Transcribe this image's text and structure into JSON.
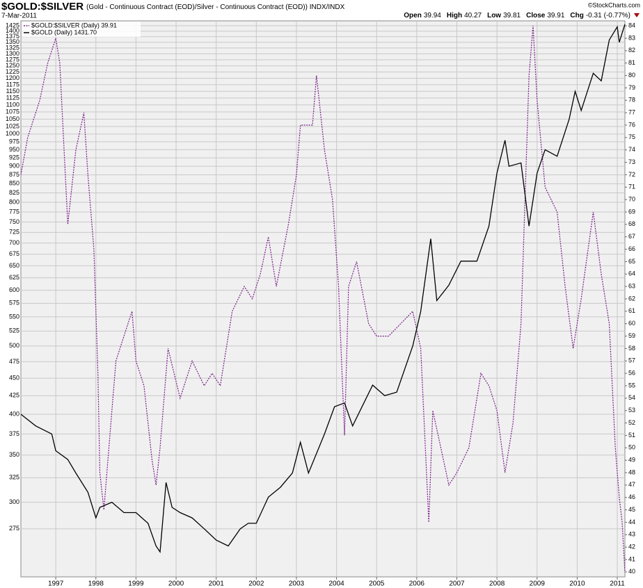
{
  "chart_data": {
    "type": "line",
    "title": "$GOLD:$SILVER",
    "subtitle": "(Gold - Continuous Contract (EOD)/Silver - Continuous Contract (EOD)) INDX/INDX",
    "date": "7-Mar-2011",
    "credit": "©StockCharts.com",
    "stats": [
      {
        "label": "Open",
        "value": 39.94
      },
      {
        "label": "High",
        "value": 40.27
      },
      {
        "label": "Low",
        "value": 39.81
      },
      {
        "label": "Close",
        "value": 39.91
      },
      {
        "label": "Chg",
        "value": -0.31,
        "percent": "(-0.77%)"
      }
    ],
    "xlim": [
      1996.13,
      2011.19
    ],
    "xticks": [
      1997,
      1998,
      1999,
      2000,
      2001,
      2002,
      2003,
      2004,
      2005,
      2006,
      2007,
      2008,
      2009,
      2010,
      2011
    ],
    "ylim": [
      235,
      1448
    ],
    "yscale": "log",
    "yticks": [
      275,
      300,
      325,
      350,
      375,
      400,
      425,
      450,
      475,
      500,
      525,
      550,
      575,
      600,
      625,
      650,
      675,
      700,
      725,
      750,
      775,
      800,
      825,
      850,
      875,
      900,
      925,
      950,
      975,
      1000,
      1025,
      1050,
      1075,
      1100,
      1125,
      1150,
      1175,
      1200,
      1225,
      1250,
      1275,
      1300,
      1325,
      1350,
      1375,
      1400,
      1425
    ],
    "y2lim": [
      39.6,
      84.4
    ],
    "y2ticks": [
      40,
      41,
      42,
      43,
      44,
      45,
      46,
      47,
      48,
      49,
      50,
      51,
      52,
      53,
      54,
      55,
      56,
      57,
      58,
      59,
      60,
      61,
      62,
      63,
      64,
      65,
      66,
      67,
      68,
      69,
      70,
      71,
      72,
      73,
      74,
      75,
      76,
      77,
      78,
      79,
      80,
      81,
      82,
      83,
      84
    ],
    "grid": true,
    "legend": "top-left",
    "series": [
      {
        "name": "$GOLD:$SILVER (Daily) 39.91",
        "color": "#7a1f8a",
        "dashed": true,
        "axis": "y2",
        "x": [
          1996.13,
          1996.3,
          1996.6,
          1996.8,
          1997.0,
          1997.1,
          1997.3,
          1997.5,
          1997.7,
          1997.8,
          1997.95,
          1998.05,
          1998.1,
          1998.2,
          1998.4,
          1998.5,
          1998.8,
          1998.9,
          1999.0,
          1999.2,
          1999.4,
          1999.5,
          1999.6,
          1999.8,
          2000.1,
          2000.4,
          2000.7,
          2000.9,
          2001.1,
          2001.4,
          2001.7,
          2001.9,
          2002.1,
          2002.3,
          2002.5,
          2002.8,
          2003.0,
          2003.1,
          2003.4,
          2003.5,
          2003.7,
          2003.9,
          2004.05,
          2004.2,
          2004.3,
          2004.5,
          2004.8,
          2005.0,
          2005.3,
          2005.6,
          2005.9,
          2006.1,
          2006.3,
          2006.4,
          2006.6,
          2006.8,
          2007.0,
          2007.3,
          2007.6,
          2007.8,
          2008.0,
          2008.2,
          2008.4,
          2008.6,
          2008.8,
          2008.9,
          2009.0,
          2009.2,
          2009.5,
          2009.7,
          2009.9,
          2010.1,
          2010.4,
          2010.6,
          2010.8,
          2010.95,
          2011.05,
          2011.12,
          2011.19
        ],
        "values": [
          72,
          75,
          78,
          81,
          83,
          81,
          68,
          74,
          77,
          72,
          66,
          56,
          48,
          45,
          53,
          57,
          60,
          61,
          57,
          55,
          49,
          47,
          50,
          58,
          54,
          57,
          55,
          56,
          55,
          61,
          63,
          62,
          64,
          67,
          63,
          68,
          72,
          76,
          76,
          80,
          74,
          70,
          63,
          51,
          63,
          65,
          60,
          59,
          59,
          60,
          61,
          58,
          44,
          53,
          50,
          47,
          48,
          50,
          56,
          55,
          53,
          48,
          52,
          60,
          80,
          84,
          78,
          71,
          69,
          63,
          58,
          62,
          69,
          64,
          60,
          50,
          46,
          44,
          40
        ]
      },
      {
        "name": "$GOLD (Daily) 1431.70",
        "color": "#000000",
        "dashed": false,
        "axis": "y",
        "x": [
          1996.13,
          1996.5,
          1996.9,
          1997.0,
          1997.3,
          1997.5,
          1997.8,
          1998.0,
          1998.1,
          1998.4,
          1998.7,
          1999.0,
          1999.3,
          1999.5,
          1999.6,
          1999.75,
          1999.9,
          2000.1,
          2000.4,
          2000.7,
          2001.0,
          2001.3,
          2001.6,
          2001.8,
          2002.0,
          2002.3,
          2002.6,
          2002.9,
          2003.1,
          2003.3,
          2003.7,
          2003.95,
          2004.2,
          2004.4,
          2004.9,
          2005.2,
          2005.5,
          2005.9,
          2006.1,
          2006.35,
          2006.5,
          2006.8,
          2007.1,
          2007.5,
          2007.8,
          2008.0,
          2008.2,
          2008.3,
          2008.6,
          2008.8,
          2009.0,
          2009.2,
          2009.5,
          2009.8,
          2009.95,
          2010.1,
          2010.4,
          2010.6,
          2010.8,
          2011.0,
          2011.05,
          2011.19
        ],
        "values": [
          400,
          385,
          375,
          355,
          345,
          330,
          310,
          285,
          295,
          300,
          290,
          290,
          280,
          260,
          255,
          320,
          295,
          290,
          285,
          275,
          265,
          260,
          275,
          280,
          280,
          305,
          315,
          330,
          365,
          330,
          375,
          410,
          415,
          385,
          440,
          425,
          430,
          500,
          560,
          710,
          580,
          610,
          660,
          660,
          740,
          880,
          980,
          900,
          910,
          740,
          880,
          950,
          930,
          1050,
          1150,
          1080,
          1220,
          1190,
          1360,
          1420,
          1350,
          1432
        ]
      }
    ]
  }
}
